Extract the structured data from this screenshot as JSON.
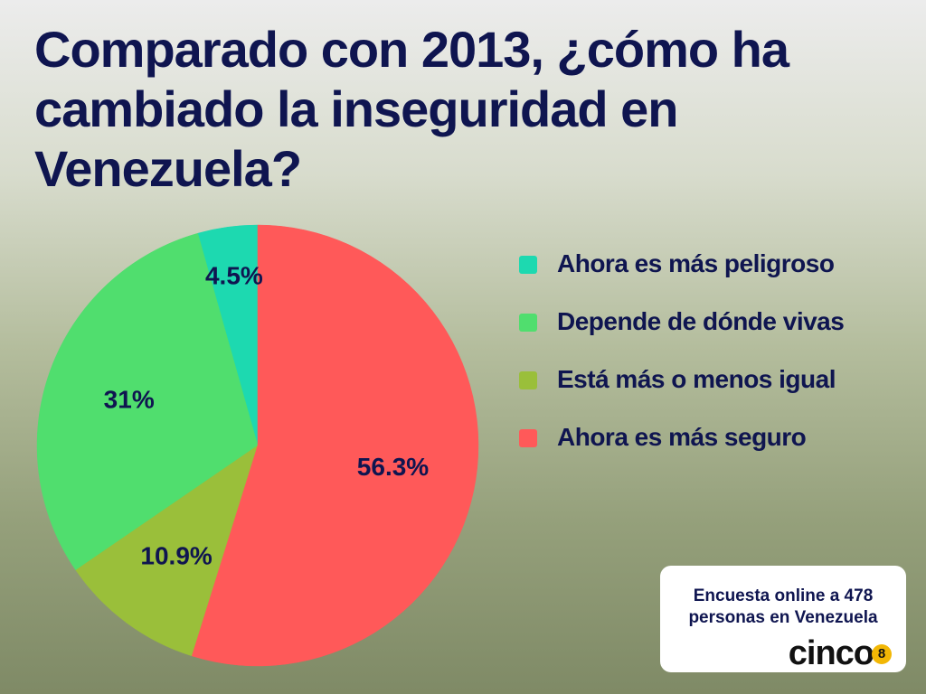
{
  "title": "Comparado con 2013, ¿cómo ha cambiado la inseguridad en Venezuela?",
  "chart_data": {
    "type": "pie",
    "title": "Comparado con 2013, ¿cómo ha cambiado la inseguridad en Venezuela?",
    "slices": [
      {
        "label": "Ahora es más peligroso",
        "value": 4.5,
        "display": "4.5%",
        "color": "#1dd9b0"
      },
      {
        "label": "Depende de dónde vivas",
        "value": 31,
        "display": "31%",
        "color": "#50de6e"
      },
      {
        "label": "Está más o menos igual",
        "value": 10.9,
        "display": "10.9%",
        "color": "#9abf3a"
      },
      {
        "label": "Ahora es más seguro",
        "value": 56.3,
        "display": "56.3%",
        "color": "#ff5959"
      }
    ],
    "legend_position": "right",
    "start": "top, counterclockwise"
  },
  "legend": {
    "items": [
      {
        "label": "Ahora es más peligroso",
        "color": "#1dd9b0"
      },
      {
        "label": "Depende de dónde vivas",
        "color": "#50de6e"
      },
      {
        "label": "Está más o menos igual",
        "color": "#9abf3a"
      },
      {
        "label": "Ahora es más seguro",
        "color": "#ff5959"
      }
    ]
  },
  "note": {
    "text": "Encuesta online a 478 personas en Venezuela",
    "brand": "cinco",
    "brand_badge": "8"
  },
  "colors": {
    "text": "#0f1550",
    "brand_badge": "#f2b705"
  }
}
